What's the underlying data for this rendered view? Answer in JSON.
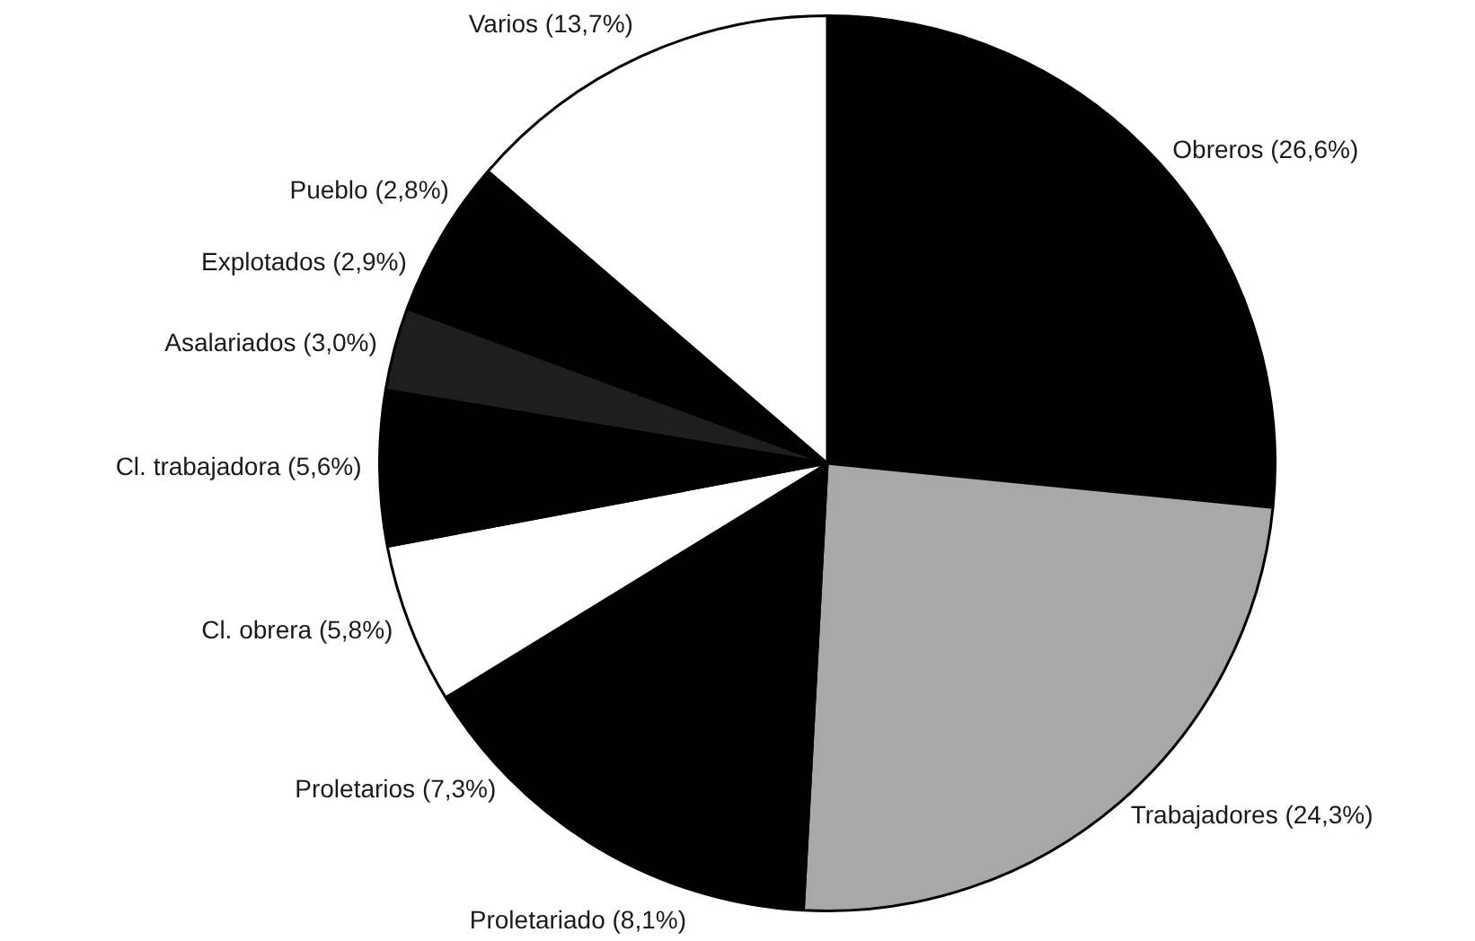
{
  "chart_data": {
    "type": "pie",
    "categories": [
      "Obreros (26,6%)",
      "Trabajadores (24,3%)",
      "Proletariado (8,1%)",
      "Proletarios (7,3%)",
      "Cl. obrera (5,8%)",
      "Cl. trabajadora (5,6%)",
      "Asalariados (3,0%)",
      "Explotados (2,9%)",
      "Pueblo (2,8%)",
      "Varios (13,7%)"
    ],
    "values": [
      26.6,
      24.3,
      8.1,
      7.3,
      5.8,
      5.6,
      3.0,
      2.9,
      2.8,
      13.7
    ],
    "colors": [
      "#000000",
      "#a8a8a8",
      "#000000",
      "#000000",
      "#ffffff",
      "#000000",
      "#1e1e1e",
      "#000000",
      "#000000",
      "#ffffff"
    ]
  }
}
